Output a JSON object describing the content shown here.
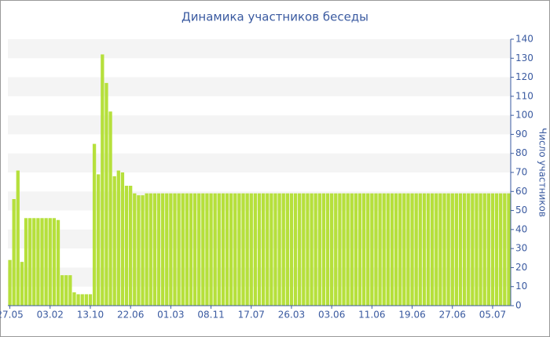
{
  "chart_data": {
    "type": "bar",
    "title": "Динамика участников беседы",
    "y_label": "Число участников",
    "categories": [
      "27.05",
      null,
      null,
      null,
      null,
      null,
      null,
      null,
      null,
      null,
      "03.02",
      null,
      null,
      null,
      null,
      null,
      null,
      null,
      null,
      null,
      "13.10",
      null,
      null,
      null,
      null,
      null,
      null,
      null,
      null,
      null,
      "22.06",
      null,
      null,
      null,
      null,
      null,
      null,
      null,
      null,
      null,
      "01.03",
      null,
      null,
      null,
      null,
      null,
      null,
      null,
      null,
      null,
      "08.11",
      null,
      null,
      null,
      null,
      null,
      null,
      null,
      null,
      null,
      "17.07",
      null,
      null,
      null,
      null,
      null,
      null,
      null,
      null,
      null,
      "26.03",
      null,
      null,
      null,
      null,
      null,
      null,
      null,
      null,
      null,
      "03.06",
      null,
      null,
      null,
      null,
      null,
      null,
      null,
      null,
      null,
      "11.06",
      null,
      null,
      null,
      null,
      null,
      null,
      null,
      null,
      null,
      "19.06",
      null,
      null,
      null,
      null,
      null,
      null,
      null,
      null,
      null,
      "27.06",
      null,
      null,
      null,
      null,
      null,
      null,
      null,
      null,
      null,
      "05.07",
      null,
      null,
      null,
      null
    ],
    "values": [
      24,
      56,
      71,
      23,
      46,
      46,
      46,
      46,
      46,
      46,
      46,
      46,
      45,
      16,
      16,
      16,
      7,
      6,
      6,
      6,
      6,
      85,
      69,
      132,
      117,
      102,
      68,
      71,
      70,
      63,
      63,
      59,
      58,
      58,
      59,
      59,
      59,
      59,
      59,
      59,
      59,
      59,
      59,
      59,
      59,
      59,
      59,
      59,
      59,
      59,
      59,
      59,
      59,
      59,
      59,
      59,
      59,
      59,
      59,
      59,
      59,
      59,
      59,
      59,
      59,
      59,
      59,
      59,
      59,
      59,
      59,
      59,
      59,
      59,
      59,
      59,
      59,
      59,
      59,
      59,
      59,
      59,
      59,
      59,
      59,
      59,
      59,
      59,
      59,
      59,
      59,
      59,
      59,
      59,
      59,
      59,
      59,
      59,
      59,
      59,
      59,
      59,
      59,
      59,
      59,
      59,
      59,
      59,
      59,
      59,
      59,
      59,
      59,
      59,
      59,
      59,
      59,
      59,
      59,
      59,
      59,
      59,
      59,
      59,
      59
    ],
    "color": "#b6e03c",
    "ylim": [
      0,
      140
    ],
    "yticks": [
      0,
      10,
      20,
      30,
      40,
      50,
      60,
      70,
      80,
      90,
      100,
      110,
      120,
      130,
      140
    ],
    "grid": true,
    "y_axis_side": "right"
  }
}
